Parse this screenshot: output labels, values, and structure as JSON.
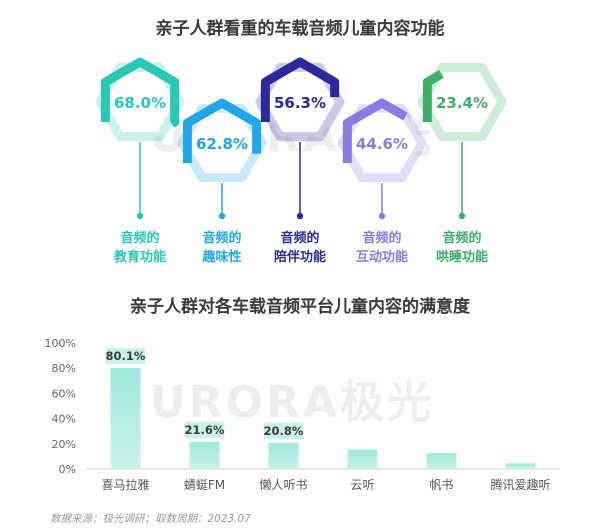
{
  "source_note": "数据来源：极光调研；取数周期：2023.07",
  "watermark": "URORA极光",
  "colors": {
    "teal": "#2bc7b5",
    "blue": "#22a6e6",
    "navy": "#2c2a9a",
    "purple": "#8a7be0",
    "green": "#3fae6a"
  },
  "chart_data": [
    {
      "type": "bar",
      "title": "亲子人群看重的车载音频儿童内容功能",
      "categories": [
        [
          "音频的",
          "教育功能"
        ],
        [
          "音频的",
          "趣味性"
        ],
        [
          "音频的",
          "陪伴功能"
        ],
        [
          "音频的",
          "互动功能"
        ],
        [
          "音频的",
          "哄睡功能"
        ]
      ],
      "values": [
        68.0,
        62.8,
        56.3,
        44.6,
        23.4
      ],
      "value_labels": [
        "68.0%",
        "62.8%",
        "56.3%",
        "44.6%",
        "23.4%"
      ],
      "series_colors": [
        "#2bc7b5",
        "#22a6e6",
        "#2c2a9a",
        "#8a7be0",
        "#3fae6a"
      ]
    },
    {
      "type": "bar",
      "title": "亲子人群对各车载音频平台儿童内容的满意度",
      "categories": [
        "喜马拉雅",
        "蜻蜓FM",
        "懒人听书",
        "云听",
        "帆书",
        "腾讯爱趣听"
      ],
      "values": [
        80.1,
        21.6,
        20.8,
        15.5,
        12.5,
        4.5
      ],
      "value_labels": [
        "80.1%",
        "21.6%",
        "20.8%",
        "",
        "",
        ""
      ],
      "yticks": [
        "0%",
        "20%",
        "40%",
        "60%",
        "80%",
        "100%"
      ],
      "ylim": [
        0,
        100
      ],
      "grid": false
    }
  ]
}
